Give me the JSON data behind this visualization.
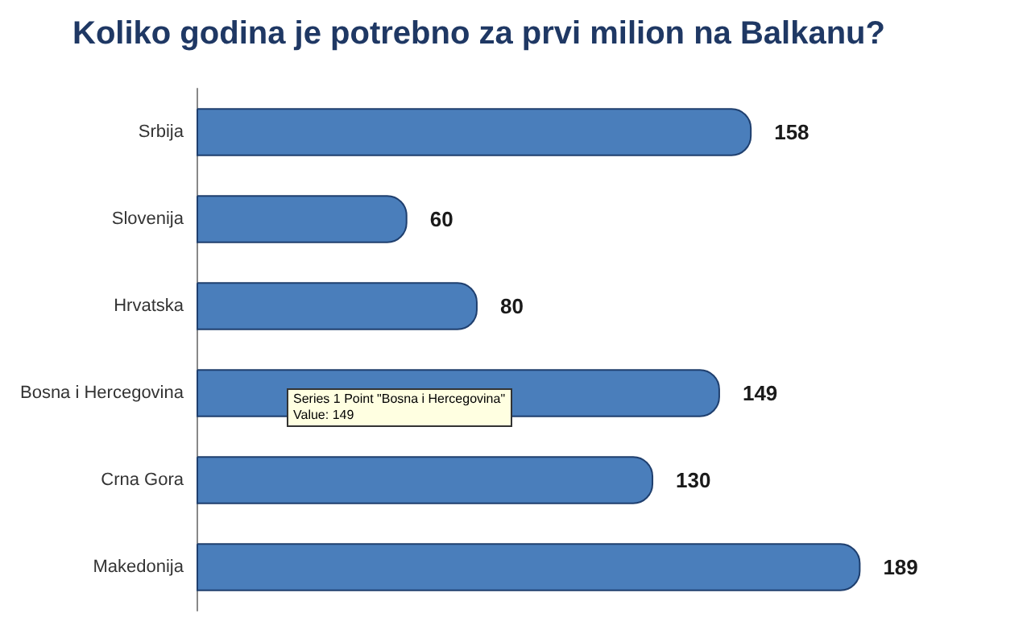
{
  "chart_data": {
    "type": "bar",
    "orientation": "horizontal",
    "title": "Koliko godina je potrebno za prvi milion na Balkanu?",
    "categories": [
      "Srbija",
      "Slovenija",
      "Hrvatska",
      "Bosna i Hercegovina",
      "Crna Gora",
      "Makedonija"
    ],
    "values": [
      158,
      60,
      80,
      149,
      130,
      189
    ],
    "color": "#4a7ebb",
    "data_labels": true,
    "grid": false,
    "annotations": [
      "Series 1 Point \"Bosna i Hercegovina\"\nValue: 149"
    ]
  }
}
